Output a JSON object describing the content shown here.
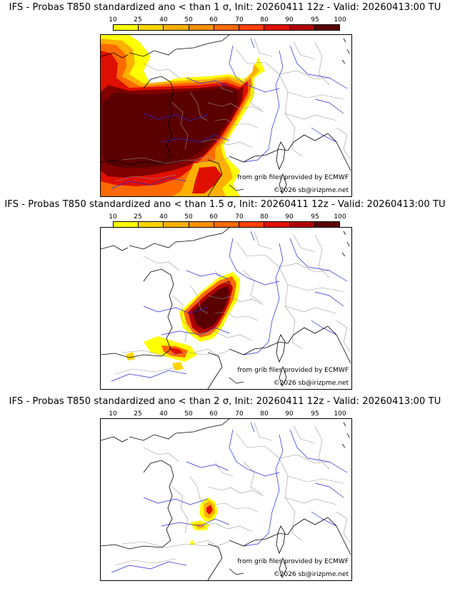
{
  "colors": {
    "c10": "#ffff00",
    "c25": "#ffd400",
    "c40": "#ffb000",
    "c50": "#ff9000",
    "c60": "#ff6a00",
    "c70": "#ff4000",
    "c80": "#e01000",
    "c90": "#b00000",
    "c95": "#800000",
    "c100": "#5a0000",
    "coast": "#000000",
    "river": "#2020e0",
    "border": "#909090"
  },
  "legend": {
    "ticks": [
      "10",
      "25",
      "40",
      "50",
      "60",
      "70",
      "80",
      "90",
      "95",
      "100"
    ]
  },
  "panels": [
    {
      "title": "IFS - Probas T850  standardized ano < than 1 σ, Init: 20260411 12z - Valid: 20260413:00 TU",
      "credit": "from grib files provided by ECMWF",
      "copyright": "©2026 sb@irizpme.net"
    },
    {
      "title": "IFS - Probas T850  standardized ano < than 1.5 σ, Init: 20260411 12z - Valid: 20260413:00 TU",
      "credit": "from grib files provided by ECMWF",
      "copyright": "©2026 sb@irizpme.net"
    },
    {
      "title": "IFS - Probas T850  standardized ano < than 2 σ, Init: 20260411 12z - Valid: 20260413:00 TU",
      "credit": "from grib files provided by ECMWF",
      "copyright": "©2026 sb@irizpme.net"
    }
  ]
}
